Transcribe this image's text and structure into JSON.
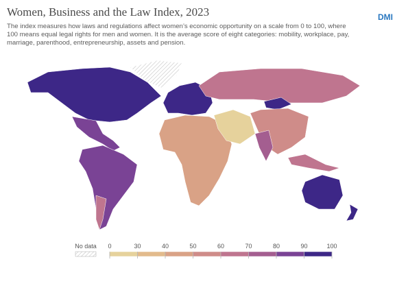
{
  "header": {
    "title": "Women, Business and the Law Index, 2023",
    "subtitle": "The index measures how laws and regulations affect women’s economic opportunity on a scale from 0 to 100, where 100 means equal legal rights for men and women. It is the average score of eight categories: mobility, workplace, pay, marriage, parenthood, entrepreneurship, assets and pension.",
    "logo": "DMI"
  },
  "legend": {
    "no_data_label": "No data",
    "ticks": [
      0,
      30,
      40,
      50,
      60,
      70,
      80,
      90,
      100
    ],
    "colors": [
      "#e6d29c",
      "#e2bb8c",
      "#d9a286",
      "#cf8c89",
      "#bf758f",
      "#a45e90",
      "#7a4395",
      "#3d2787"
    ]
  }
}
